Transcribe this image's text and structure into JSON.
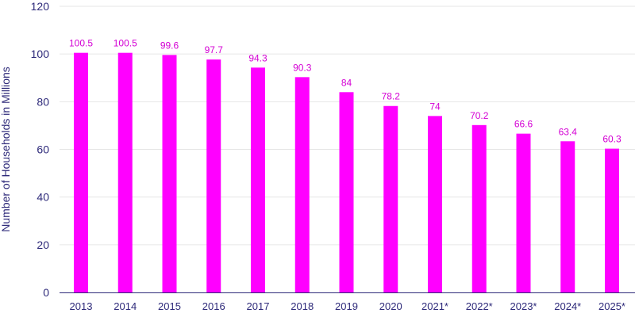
{
  "chart_data": {
    "type": "bar",
    "title": "",
    "xlabel": "",
    "ylabel": "Number of Households in Millions",
    "categories": [
      "2013",
      "2014",
      "2015",
      "2016",
      "2017",
      "2018",
      "2019",
      "2020",
      "2021*",
      "2022*",
      "2023*",
      "2024*",
      "2025*"
    ],
    "values": [
      100.5,
      100.5,
      99.6,
      97.7,
      94.3,
      90.3,
      84,
      78.2,
      74,
      70.2,
      66.6,
      63.4,
      60.3
    ],
    "value_labels": [
      "100.5",
      "100.5",
      "99.6",
      "97.7",
      "94.3",
      "90.3",
      "84",
      "78.2",
      "74",
      "70.2",
      "66.6",
      "63.4",
      "60.3"
    ],
    "ylim": [
      0,
      120
    ],
    "yticks": [
      0,
      20,
      40,
      60,
      80,
      100,
      120
    ],
    "ytick_labels": [
      "0",
      "20",
      "40",
      "60",
      "80",
      "100",
      "120"
    ],
    "grid": true,
    "colors": {
      "bar": "#ff00ff",
      "value_label": "#d400d4",
      "axis_text": "#2e2a7a",
      "grid": "#e6e6e6"
    }
  }
}
